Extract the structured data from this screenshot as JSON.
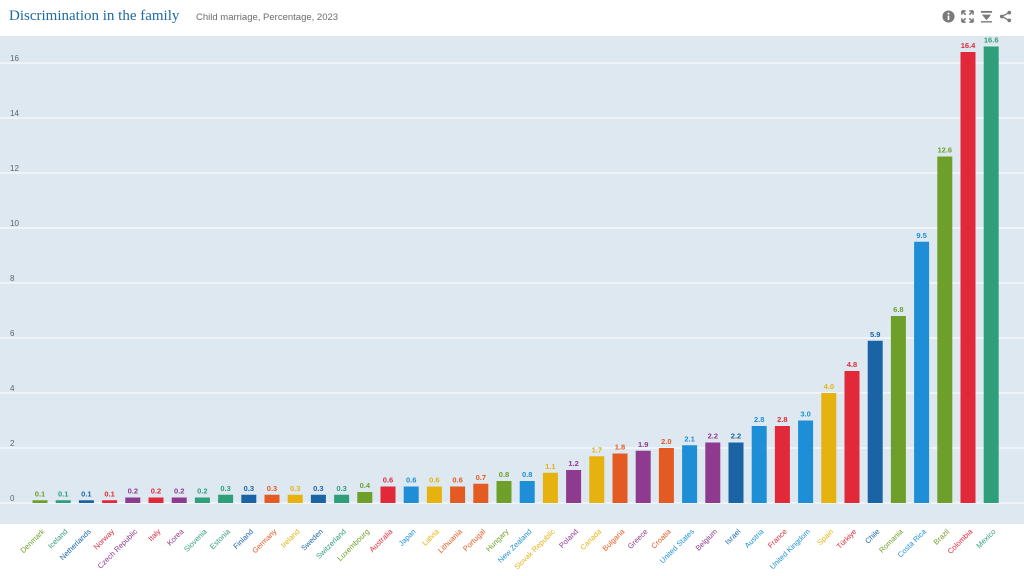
{
  "header": {
    "title": "Discrimination in the family",
    "subtitle": "Child marriage, Percentage, 2023"
  },
  "toolbar": {
    "icons": [
      "info-icon",
      "expand-icon",
      "download-icon",
      "share-icon"
    ]
  },
  "chart_data": {
    "type": "bar",
    "title": "Discrimination in the family",
    "subtitle": "Child marriage, Percentage, 2023",
    "xlabel": "",
    "ylabel": "",
    "ylim": [
      0,
      17
    ],
    "yticks": [
      0,
      2,
      4,
      6,
      8,
      10,
      12,
      14,
      16
    ],
    "grid": true,
    "categories": [
      "Denmark",
      "Iceland",
      "Netherlands",
      "Norway",
      "Czech Republic",
      "Italy",
      "Korea",
      "Slovenia",
      "Estonia",
      "Finland",
      "Germany",
      "Ireland",
      "Sweden",
      "Switzerland",
      "Luxembourg",
      "Australia",
      "Japan",
      "Latvia",
      "Lithuania",
      "Portugal",
      "Hungary",
      "New Zealand",
      "Slovak Republic",
      "Poland",
      "Canada",
      "Bulgaria",
      "Greece",
      "Croatia",
      "United States",
      "Belgium",
      "Israel",
      "Austria",
      "France",
      "United Kingdom",
      "Spain",
      "Türkiye",
      "Chile",
      "Romania",
      "Costa Rica",
      "Brazil",
      "Colombia",
      "Mexico"
    ],
    "values": [
      0.1,
      0.1,
      0.1,
      0.1,
      0.2,
      0.2,
      0.2,
      0.2,
      0.3,
      0.3,
      0.3,
      0.3,
      0.3,
      0.3,
      0.4,
      0.6,
      0.6,
      0.6,
      0.6,
      0.7,
      0.8,
      0.8,
      1.1,
      1.2,
      1.7,
      1.8,
      1.9,
      2.0,
      2.1,
      2.2,
      2.2,
      2.8,
      2.8,
      3.0,
      4.0,
      4.8,
      5.9,
      6.8,
      9.5,
      12.6,
      16.4,
      16.6
    ],
    "value_labels": [
      "0.1",
      "0.1",
      "0.1",
      "0.1",
      "0.2",
      "0.2",
      "0.2",
      "0.2",
      "0.3",
      "0.3",
      "0.3",
      "0.3",
      "0.3",
      "0.3",
      "0.4",
      "0.6",
      "0.6",
      "0.6",
      "0.6",
      "0.7",
      "0.8",
      "0.8",
      "1.1",
      "1.2",
      "1.7",
      "1.8",
      "1.9",
      "2.0",
      "2.1",
      "2.2",
      "2.2",
      "2.8",
      "2.8",
      "3.0",
      "4.0",
      "4.8",
      "5.9",
      "6.8",
      "9.5",
      "12.6",
      "16.4",
      "16.6"
    ],
    "colors": [
      "#6e9f2a",
      "#2f9e7a",
      "#1a64a6",
      "#e1293a",
      "#8e3a8e",
      "#e1293a",
      "#8e3a8e",
      "#2f9e7a",
      "#2f9e7a",
      "#1a64a6",
      "#e35a22",
      "#e6b20f",
      "#1a64a6",
      "#2f9e7a",
      "#6e9f2a",
      "#e1293a",
      "#1e8fd6",
      "#e6b20f",
      "#e35a22",
      "#e35a22",
      "#6e9f2a",
      "#1e8fd6",
      "#e6b20f",
      "#8e3a8e",
      "#e6b20f",
      "#e35a22",
      "#8e3a8e",
      "#e35a22",
      "#1e8fd6",
      "#8e3a8e",
      "#1a64a6",
      "#1e8fd6",
      "#e1293a",
      "#1e8fd6",
      "#e6b20f",
      "#e1293a",
      "#1a64a6",
      "#6e9f2a",
      "#1e8fd6",
      "#6e9f2a",
      "#e1293a",
      "#2f9e7a"
    ],
    "plot_background": "#dde8f0"
  }
}
